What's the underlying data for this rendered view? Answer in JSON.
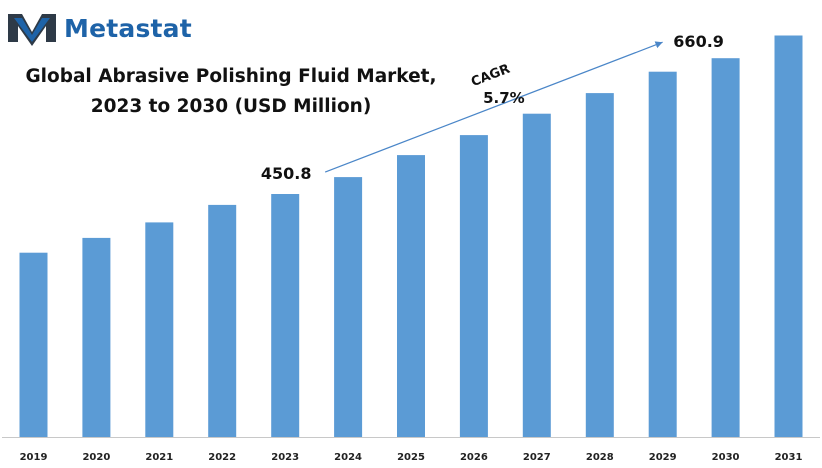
{
  "brand": {
    "name": "Metastat",
    "logo_icon": "metastat-m-logo-icon",
    "colors": {
      "primary": "#1e63a8",
      "secondary": "#9aa3ad"
    }
  },
  "title_lines": [
    "Global Abrasive Polishing Fluid Market,",
    "2023 to 2030 (USD Million)"
  ],
  "annotations": {
    "start_label": "450.8",
    "end_label": "660.9",
    "cagr_label": "CAGR",
    "cagr_value": "5.7%"
  },
  "chart_data": {
    "type": "bar",
    "categories": [
      "2019",
      "2020",
      "2021",
      "2022",
      "2023",
      "2024",
      "2025",
      "2026",
      "2027",
      "2028",
      "2029",
      "2030",
      "2031"
    ],
    "values": [
      360,
      383,
      407,
      434,
      450.8,
      477,
      511,
      542,
      575,
      607,
      640,
      660.9,
      696
    ],
    "data_labels": {
      "2023": "450.8",
      "2030": "660.9"
    },
    "ylim": [
      75,
      720
    ],
    "bar_color": "#5b9bd5",
    "arrow_color": "#4a86c8",
    "title": "Global Abrasive Polishing Fluid Market, 2023 to 2030 (USD Million)",
    "xlabel": "",
    "ylabel": "",
    "grid": false,
    "legend": "none"
  }
}
